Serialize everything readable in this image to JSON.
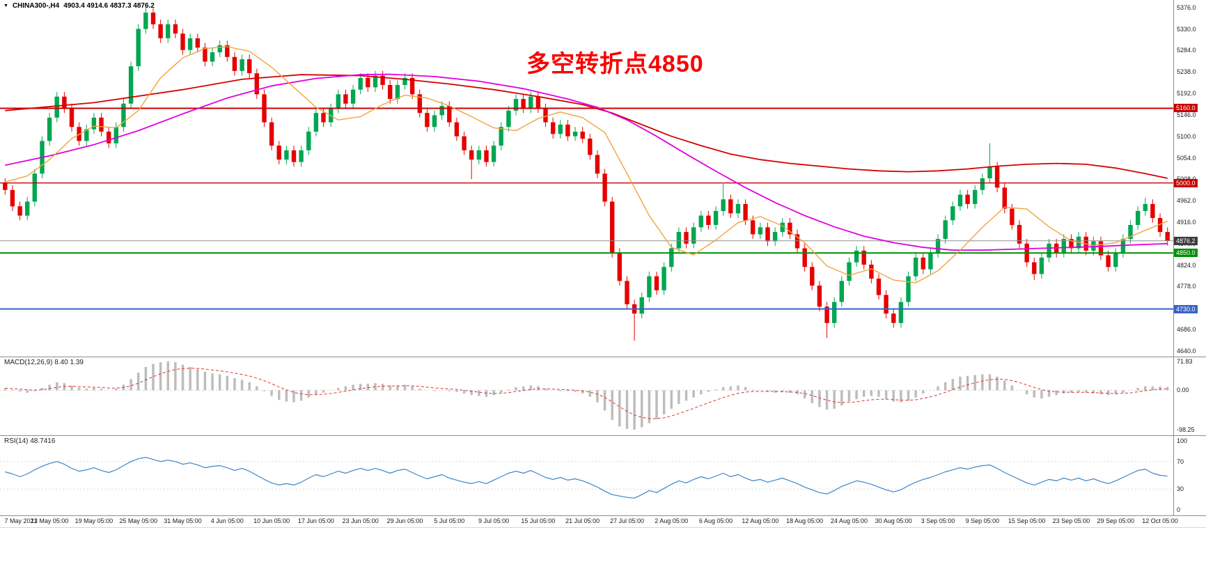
{
  "window": {
    "collapse_icon": "▼",
    "symbol": "CHINA300-,H4",
    "ohlc": "4903.4 4914.6 4837.3 4876.2"
  },
  "annotation": {
    "text": "多空转折点4850"
  },
  "indicators": {
    "macd_label": "MACD(12,26,9) 8.40 1.39",
    "rsi_label": "RSI(14) 48.7416"
  },
  "colors": {
    "candle_up": "#00a651",
    "candle_down": "#e60000",
    "macd_hist": "#bdbdbd",
    "macd_signal": "#e03030",
    "rsi_line": "#3d85c8",
    "annotation": "#fa0000",
    "axis_text": "#1a1a1a"
  },
  "chart_data": {
    "main": {
      "type": "candlestick",
      "symbol": "CHINA300-,H4",
      "y_range": [
        4628,
        5392
      ],
      "y_ticks": [
        "5376.0",
        "5330.0",
        "5284.0",
        "5238.0",
        "5192.0",
        "5146.0",
        "5100.0",
        "5054.0",
        "5008.0",
        "4962.0",
        "4916.0",
        "4870.0",
        "4824.0",
        "4778.0",
        "4732.0",
        "4686.0",
        "4640.0"
      ],
      "x_labels": [
        "7 May 2021",
        "13 May 05:00",
        "19 May 05:00",
        "25 May 05:00",
        "31 May 05:00",
        "4 Jun 05:00",
        "10 Jun 05:00",
        "17 Jun 05:00",
        "23 Jun 05:00",
        "29 Jun 05:00",
        "5 Jul 05:00",
        "9 Jul 05:00",
        "15 Jul 05:00",
        "21 Jul 05:00",
        "27 Jul 05:00",
        "2 Aug 05:00",
        "6 Aug 05:00",
        "12 Aug 05:00",
        "18 Aug 05:00",
        "24 Aug 05:00",
        "30 Aug 05:00",
        "3 Sep 05:00",
        "9 Sep 05:00",
        "15 Sep 05:00",
        "23 Sep 05:00",
        "29 Sep 05:00",
        "12 Oct 05:00"
      ],
      "bars_per_label": 6,
      "first_open": 5000,
      "default_wick": 10,
      "closes": [
        4985,
        4950,
        4930,
        4960,
        5020,
        5090,
        5140,
        5185,
        5160,
        5120,
        5090,
        5115,
        5140,
        5110,
        5085,
        5120,
        5170,
        5250,
        5330,
        5365,
        5340,
        5310,
        5340,
        5320,
        5285,
        5310,
        5290,
        5260,
        5280,
        5295,
        5270,
        5240,
        5265,
        5235,
        5190,
        5130,
        5080,
        5050,
        5070,
        5045,
        5070,
        5110,
        5150,
        5130,
        5160,
        5190,
        5170,
        5200,
        5225,
        5205,
        5230,
        5210,
        5180,
        5210,
        5225,
        5190,
        5150,
        5120,
        5145,
        5165,
        5130,
        5100,
        5070,
        5050,
        5070,
        5045,
        5080,
        5120,
        5155,
        5180,
        5160,
        5185,
        5160,
        5130,
        5105,
        5125,
        5100,
        5110,
        5095,
        5060,
        5020,
        4960,
        4850,
        4790,
        4740,
        4720,
        4755,
        4800,
        4770,
        4820,
        4860,
        4895,
        4870,
        4905,
        4930,
        4910,
        4940,
        4965,
        4935,
        4955,
        4920,
        4890,
        4905,
        4875,
        4895,
        4915,
        4890,
        4860,
        4820,
        4780,
        4735,
        4700,
        4745,
        4790,
        4830,
        4855,
        4825,
        4795,
        4760,
        4720,
        4700,
        4745,
        4800,
        4840,
        4815,
        4850,
        4880,
        4920,
        4950,
        4975,
        4955,
        4985,
        5010,
        5035,
        4990,
        4945,
        4910,
        4870,
        4830,
        4805,
        4840,
        4870,
        4850,
        4880,
        4860,
        4885,
        4855,
        4875,
        4845,
        4820,
        4850,
        4880,
        4910,
        4940,
        4955,
        4925,
        4895,
        4876.2
      ],
      "wicks": {
        "19": {
          "high": 5385
        },
        "63": {
          "low": 5008
        },
        "85": {
          "low": 4662
        },
        "97": {
          "high": 4998
        },
        "111": {
          "low": 4668
        },
        "120": {
          "low": 4690
        },
        "133": {
          "high": 5085
        },
        "139": {
          "low": 4792
        },
        "154": {
          "high": 4968
        }
      },
      "levels": [
        {
          "price": 5160,
          "label": "5160.0",
          "color": "#c80000",
          "width": 2,
          "tag_bg": "#c80000"
        },
        {
          "price": 5000,
          "label": "5000.0",
          "color": "#c80000",
          "width": 1.4,
          "tag_bg": "#c80000"
        },
        {
          "price": 4876.2,
          "label": "4876.2",
          "color": "#909090",
          "width": 1,
          "tag_bg": "#3c3c3c"
        },
        {
          "price": 4850,
          "label": "4850.0",
          "color": "#009000",
          "width": 2,
          "tag_bg": "#009000"
        },
        {
          "price": 4730,
          "label": "4730.0",
          "color": "#3a62c8",
          "width": 2,
          "tag_bg": "#3a62c8"
        }
      ],
      "mas": [
        {
          "name": "ma-slow",
          "color": "#d40000",
          "width": 1.8,
          "points": [
            [
              0,
              5155
            ],
            [
              12,
              5172
            ],
            [
              24,
              5200
            ],
            [
              32,
              5222
            ],
            [
              40,
              5232
            ],
            [
              48,
              5230
            ],
            [
              54,
              5222
            ],
            [
              60,
              5212
            ],
            [
              66,
              5200
            ],
            [
              72,
              5185
            ],
            [
              78,
              5168
            ],
            [
              82,
              5150
            ],
            [
              86,
              5125
            ],
            [
              90,
              5100
            ],
            [
              94,
              5080
            ],
            [
              98,
              5062
            ],
            [
              102,
              5050
            ],
            [
              106,
              5042
            ],
            [
              110,
              5036
            ],
            [
              114,
              5030
            ],
            [
              118,
              5026
            ],
            [
              122,
              5024
            ],
            [
              126,
              5026
            ],
            [
              130,
              5030
            ],
            [
              134,
              5036
            ],
            [
              138,
              5040
            ],
            [
              142,
              5042
            ],
            [
              146,
              5040
            ],
            [
              150,
              5032
            ],
            [
              154,
              5020
            ],
            [
              157,
              5010
            ]
          ]
        },
        {
          "name": "ma-mid",
          "color": "#e000e0",
          "width": 1.8,
          "points": [
            [
              0,
              5038
            ],
            [
              6,
              5058
            ],
            [
              12,
              5082
            ],
            [
              18,
              5112
            ],
            [
              24,
              5148
            ],
            [
              30,
              5182
            ],
            [
              36,
              5208
            ],
            [
              42,
              5224
            ],
            [
              48,
              5232
            ],
            [
              52,
              5233
            ],
            [
              58,
              5228
            ],
            [
              64,
              5218
            ],
            [
              70,
              5202
            ],
            [
              76,
              5180
            ],
            [
              80,
              5162
            ],
            [
              84,
              5135
            ],
            [
              88,
              5100
            ],
            [
              92,
              5062
            ],
            [
              96,
              5025
            ],
            [
              100,
              4990
            ],
            [
              104,
              4958
            ],
            [
              108,
              4930
            ],
            [
              112,
              4906
            ],
            [
              116,
              4886
            ],
            [
              120,
              4872
            ],
            [
              124,
              4862
            ],
            [
              128,
              4856
            ],
            [
              132,
              4856
            ],
            [
              136,
              4858
            ],
            [
              140,
              4860
            ],
            [
              144,
              4862
            ],
            [
              148,
              4864
            ],
            [
              152,
              4867
            ],
            [
              157,
              4870
            ]
          ]
        },
        {
          "name": "ma-fast",
          "color": "#f2a33c",
          "width": 1.4,
          "points": [
            [
              0,
              5002
            ],
            [
              3,
              5015
            ],
            [
              6,
              5050
            ],
            [
              9,
              5095
            ],
            [
              12,
              5122
            ],
            [
              15,
              5118
            ],
            [
              18,
              5155
            ],
            [
              21,
              5225
            ],
            [
              24,
              5268
            ],
            [
              27,
              5288
            ],
            [
              30,
              5292
            ],
            [
              33,
              5282
            ],
            [
              36,
              5248
            ],
            [
              39,
              5205
            ],
            [
              42,
              5162
            ],
            [
              45,
              5135
            ],
            [
              48,
              5142
            ],
            [
              51,
              5168
            ],
            [
              54,
              5188
            ],
            [
              57,
              5182
            ],
            [
              60,
              5165
            ],
            [
              63,
              5142
            ],
            [
              66,
              5118
            ],
            [
              69,
              5112
            ],
            [
              72,
              5138
            ],
            [
              75,
              5152
            ],
            [
              78,
              5140
            ],
            [
              81,
              5108
            ],
            [
              84,
              5020
            ],
            [
              87,
              4930
            ],
            [
              90,
              4862
            ],
            [
              93,
              4846
            ],
            [
              96,
              4878
            ],
            [
              99,
              4915
            ],
            [
              102,
              4928
            ],
            [
              105,
              4908
            ],
            [
              108,
              4872
            ],
            [
              111,
              4822
            ],
            [
              114,
              4802
            ],
            [
              117,
              4816
            ],
            [
              120,
              4792
            ],
            [
              123,
              4786
            ],
            [
              126,
              4812
            ],
            [
              129,
              4856
            ],
            [
              132,
              4905
            ],
            [
              135,
              4948
            ],
            [
              138,
              4944
            ],
            [
              141,
              4906
            ],
            [
              144,
              4876
            ],
            [
              147,
              4866
            ],
            [
              150,
              4872
            ],
            [
              153,
              4892
            ],
            [
              157,
              4918
            ]
          ]
        }
      ]
    },
    "macd": {
      "type": "bar",
      "label": "MACD(12,26,9) 8.40 1.39",
      "y_range": [
        -112,
        84
      ],
      "y_ticks": [
        "71.83",
        "0.00",
        "-98.25"
      ],
      "signal_period": 9,
      "values": [
        5,
        2,
        -3,
        -6,
        -2,
        6,
        14,
        20,
        18,
        12,
        6,
        4,
        6,
        4,
        0,
        4,
        14,
        28,
        44,
        58,
        66,
        70,
        72,
        70,
        64,
        58,
        52,
        46,
        42,
        40,
        36,
        30,
        26,
        20,
        10,
        -2,
        -14,
        -24,
        -28,
        -30,
        -26,
        -18,
        -10,
        -6,
        0,
        6,
        10,
        14,
        16,
        16,
        18,
        16,
        12,
        12,
        14,
        10,
        4,
        0,
        -2,
        0,
        -2,
        -4,
        -8,
        -12,
        -14,
        -16,
        -12,
        -6,
        2,
        8,
        10,
        12,
        10,
        4,
        0,
        -2,
        -2,
        -4,
        -8,
        -16,
        -30,
        -50,
        -74,
        -90,
        -96,
        -98,
        -92,
        -82,
        -72,
        -60,
        -46,
        -34,
        -26,
        -18,
        -10,
        -4,
        2,
        8,
        10,
        12,
        8,
        2,
        0,
        -4,
        -6,
        -4,
        -6,
        -10,
        -20,
        -32,
        -42,
        -48,
        -46,
        -38,
        -28,
        -22,
        -16,
        -14,
        -16,
        -22,
        -28,
        -30,
        -26,
        -18,
        -8,
        0,
        10,
        20,
        28,
        34,
        36,
        38,
        40,
        40,
        34,
        24,
        12,
        0,
        -10,
        -18,
        -20,
        -16,
        -12,
        -8,
        -6,
        -4,
        -6,
        -8,
        -10,
        -12,
        -10,
        -6,
        0,
        6,
        10,
        10,
        9,
        8.4
      ]
    },
    "rsi": {
      "type": "line",
      "label": "RSI(14) 48.7416",
      "y_range": [
        -8,
        108
      ],
      "y_ticks": [
        "100",
        "70",
        "30",
        "0"
      ],
      "levels": [
        70,
        30
      ],
      "values": [
        55,
        52,
        48,
        52,
        58,
        63,
        67,
        70,
        66,
        60,
        56,
        58,
        61,
        57,
        54,
        58,
        64,
        70,
        74,
        76,
        73,
        70,
        72,
        70,
        66,
        68,
        65,
        61,
        63,
        64,
        61,
        57,
        60,
        56,
        50,
        44,
        39,
        36,
        38,
        36,
        40,
        46,
        51,
        48,
        52,
        56,
        53,
        57,
        60,
        57,
        60,
        57,
        53,
        57,
        59,
        54,
        49,
        45,
        48,
        51,
        46,
        43,
        40,
        38,
        41,
        38,
        43,
        48,
        53,
        56,
        53,
        57,
        52,
        47,
        44,
        47,
        43,
        45,
        42,
        38,
        33,
        27,
        22,
        20,
        18,
        17,
        22,
        28,
        25,
        31,
        37,
        42,
        39,
        44,
        48,
        45,
        49,
        53,
        48,
        51,
        46,
        42,
        44,
        40,
        43,
        46,
        42,
        38,
        33,
        29,
        25,
        23,
        28,
        34,
        38,
        42,
        40,
        37,
        33,
        29,
        26,
        29,
        35,
        40,
        44,
        47,
        51,
        55,
        58,
        61,
        59,
        62,
        64,
        65,
        60,
        54,
        49,
        44,
        39,
        36,
        40,
        44,
        42,
        46,
        43,
        46,
        42,
        45,
        41,
        38,
        42,
        47,
        52,
        57,
        59,
        53,
        50,
        48.74
      ]
    }
  }
}
